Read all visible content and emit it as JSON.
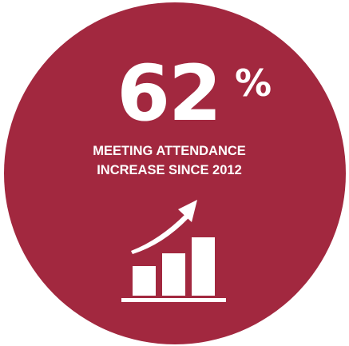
{
  "stat": {
    "value": "62",
    "unit": "%"
  },
  "caption": [
    "MEETING ATTENDANCE",
    "INCREASE SINCE 2012"
  ]
}
